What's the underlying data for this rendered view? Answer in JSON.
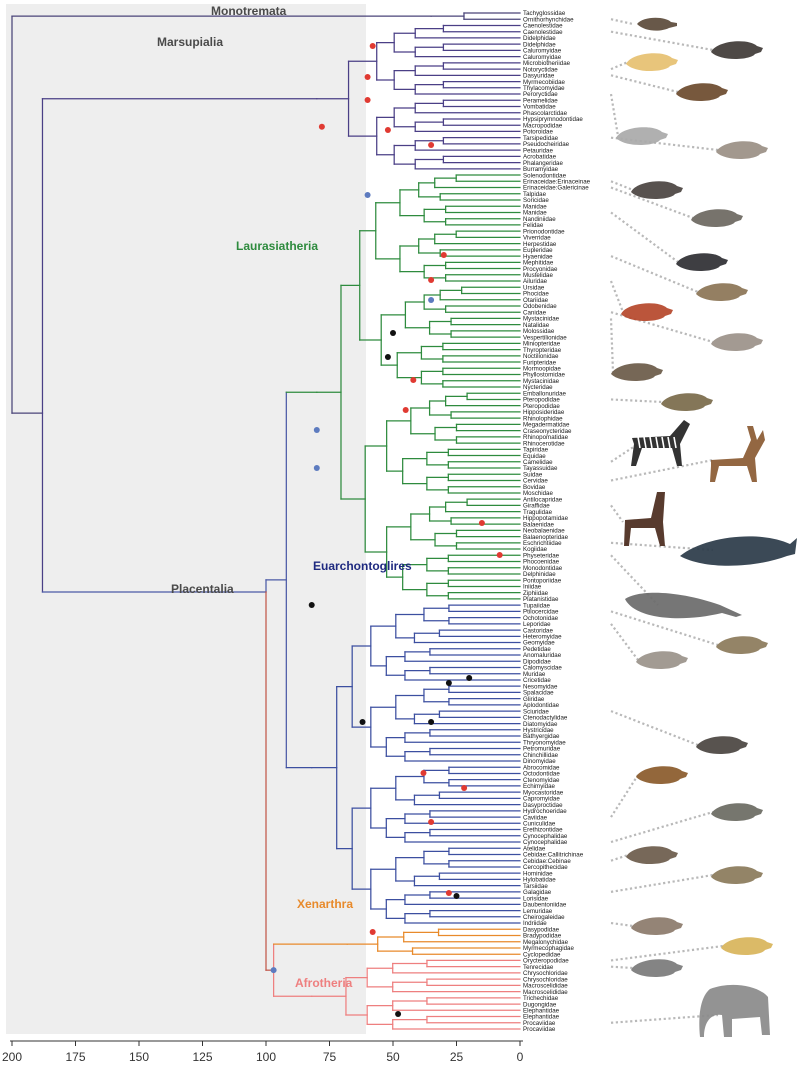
{
  "colors": {
    "monotremata": "#4a4478",
    "marsupialia": "#4a3f86",
    "laurasiatheria": "#2e8b3e",
    "euarchontoglires": "#3c4fa0",
    "placentalia": "#4b5aa6",
    "xenarthra": "#e88a2b",
    "afrotheria": "#ee7f7f",
    "stem": "#c2574a",
    "shade": "#eeeeee",
    "node_red": "#e03a32",
    "node_blue": "#5d7bbf",
    "node_black": "#111111"
  },
  "clade_labels": {
    "monotremata": "Monotremata",
    "marsupialia": "Marsupialia",
    "laurasiatheria": "Laurasiatheria",
    "euarchontoglires": "Euarchontoglires",
    "placentalia": "Placentalia",
    "xenarthra": "Xenarthra",
    "afrotheria": "Afrotheria"
  },
  "axis": {
    "ticks": [
      "200",
      "175",
      "150",
      "125",
      "100",
      "75",
      "50",
      "25",
      "0"
    ],
    "values": [
      200,
      175,
      150,
      125,
      100,
      75,
      50,
      25,
      0
    ]
  },
  "groups": [
    {
      "key": "monotremata",
      "taxa": [
        "Tachyglossidae",
        "Ornithorhynchidae"
      ]
    },
    {
      "key": "marsupialia",
      "taxa": [
        "Caenolestidae",
        "Caenolestidae",
        "Didelphidae",
        "Didelphidae",
        "Caluromyidae",
        "Caluromyidae",
        "Microbiotheriidae",
        "Notoryctidae",
        "Dasyuridae",
        "Myrmecobiidae",
        "Thylacomyidae",
        "Peroryctidae",
        "Peramelidae",
        "Vombatidae",
        "Phascolarctidae",
        "Hypsiprymnodontidae",
        "Macropodidae",
        "Potoroidae",
        "Tarsipedidae",
        "Pseudocheiridae",
        "Petauridae",
        "Acrobatidae",
        "Phalangeridae",
        "Burramyidae"
      ]
    },
    {
      "key": "laurasiatheria",
      "taxa": [
        "Solenodontidae",
        "Erinaceidae:Erinaceinae",
        "Erinaceidae:Galericinae",
        "Talpidae",
        "Soricidae",
        "Manidae",
        "Manidae",
        "Nandiniidae",
        "Felidae",
        "Prionodontidae",
        "Viverridae",
        "Herpestidae",
        "Eupleridae",
        "Hyaenidae",
        "Mephitidae",
        "Procyonidae",
        "Mustelidae",
        "Ailuridae",
        "Ursidae",
        "Phocidae",
        "Otariidae",
        "Odobenidae",
        "Canidae",
        "Mystacinidae",
        "Natalidae",
        "Molossidae",
        "Vespertilionidae",
        "Miniopteridae",
        "Thyropteridae",
        "Noctilionidae",
        "Furipteridae",
        "Mormoopidae",
        "Phyllostomidae",
        "Mystacinidae",
        "Nycteridae",
        "Emballonuridae",
        "Pteropodidae",
        "Pteropodidae",
        "Hipposideridae",
        "Rhinolophidae",
        "Megadermatidae",
        "Craseonycteridae",
        "Rhinopomatidae",
        "Rhinocerotidae",
        "Tapiridae",
        "Equidae",
        "Camelidae",
        "Tayassuidae",
        "Suidae",
        "Cervidae",
        "Bovidae",
        "Moschidae",
        "Antilocapridae",
        "Giraffidae",
        "Tragulidae",
        "Hippopotamidae",
        "Balaenidae",
        "Neobalaenidae",
        "Balaenopteridae",
        "Eschrichtiidae",
        "Kogiidae",
        "Physeteridae",
        "Phocoenidae",
        "Monodontidae",
        "Delphinidae",
        "Pontoporiidae",
        "Iniidae",
        "Ziphiidae",
        "Platanistidae"
      ]
    },
    {
      "key": "euarchontoglires",
      "taxa": [
        "Tupaiidae",
        "Ptilocercidae",
        "Ochotonidae",
        "Leporidae",
        "Castoridae",
        "Heteromyidae",
        "Geomyidae",
        "Pedetidae",
        "Anomaluridae",
        "Dipodidae",
        "Calomyscidae",
        "Muridae",
        "Cricetidae",
        "Nesomyidae",
        "Spalacidae",
        "Gliridae",
        "Aplodontidae",
        "Sciuridae",
        "Ctenodactylidae",
        "Diatomyidae",
        "Hystricidae",
        "Bathyergidae",
        "Thryonomyidae",
        "Petromuridae",
        "Chinchillidae",
        "Dinomyidae",
        "Abrocomidae",
        "Octodontidae",
        "Ctenomyidae",
        "Echimyidae",
        "Myocastoridae",
        "Capromyidae",
        "Dasyproctidae",
        "Hydrochoeridae",
        "Caviidae",
        "Cuniculidae",
        "Erethizontidae",
        "Cynocephalidae",
        "Cynocephalidae",
        "Atelidae",
        "Cebidae:Callitrichinae",
        "Cebidae:Cebinae",
        "Cercopithecidae",
        "Hominidae",
        "Hylobatidae",
        "Tarsiidae",
        "Galagidae",
        "Lorisidae",
        "Daubentoniidae",
        "Lemuridae",
        "Cheirogaleidae",
        "Indriidae"
      ]
    },
    {
      "key": "xenarthra",
      "taxa": [
        "Dasypodidae",
        "Bradypodidae",
        "Megalonychidae",
        "Myrmecophagidae",
        "Cyclopedidae"
      ]
    },
    {
      "key": "afrotheria",
      "taxa": [
        "Orycteropodidae",
        "Tenrecidae",
        "Chrysochloridae",
        "Chrysochloridae",
        "Macroscelididae",
        "Macroscelididae",
        "Trichechidae",
        "Dugongidae",
        "Elephantidae",
        "Elephantidae",
        "Procaviidae",
        "Procaviidae"
      ]
    }
  ],
  "animals": [
    {
      "icon": "platypus-icon",
      "tip": 1
    },
    {
      "icon": "shrew-opossum-icon",
      "tip": 3
    },
    {
      "icon": "marsupial-mole-icon",
      "tip": 9
    },
    {
      "icon": "quoll-icon",
      "tip": 10
    },
    {
      "icon": "bilby-icon",
      "tip": 13
    },
    {
      "icon": "honey-possum-icon",
      "tip": 20
    },
    {
      "icon": "hedgehog-icon",
      "tip": 27
    },
    {
      "icon": "shrew-icon",
      "tip": 28
    },
    {
      "icon": "pangolin-icon",
      "tip": 32
    },
    {
      "icon": "hyena-icon",
      "tip": 39
    },
    {
      "icon": "red-panda-icon",
      "tip": 43
    },
    {
      "icon": "canid-icon",
      "tip": 48
    },
    {
      "icon": "bat-icon",
      "tip": 49
    },
    {
      "icon": "flying-fox-icon",
      "tip": 62
    },
    {
      "icon": "zebra-icon",
      "tip": 72
    },
    {
      "icon": "deer-icon",
      "tip": 75
    },
    {
      "icon": "okapi-icon",
      "tip": 79
    },
    {
      "icon": "humpback-whale-icon",
      "tip": 85
    },
    {
      "icon": "sperm-whale-icon",
      "tip": 87
    },
    {
      "icon": "tree-shrew-icon",
      "tip": 96
    },
    {
      "icon": "pika-icon",
      "tip": 98
    },
    {
      "icon": "mountain-beaver-icon",
      "tip": 112
    },
    {
      "icon": "capybara-icon",
      "tip": 129
    },
    {
      "icon": "colugo-icon",
      "tip": 133
    },
    {
      "icon": "monkey-icon",
      "tip": 136
    },
    {
      "icon": "tarsier-icon",
      "tip": 141
    },
    {
      "icon": "mouse-lemur-icon",
      "tip": 146
    },
    {
      "icon": "anteater-icon",
      "tip": 152
    },
    {
      "icon": "aardvark-icon",
      "tip": 153
    },
    {
      "icon": "elephant-icon",
      "tip": 162
    }
  ]
}
